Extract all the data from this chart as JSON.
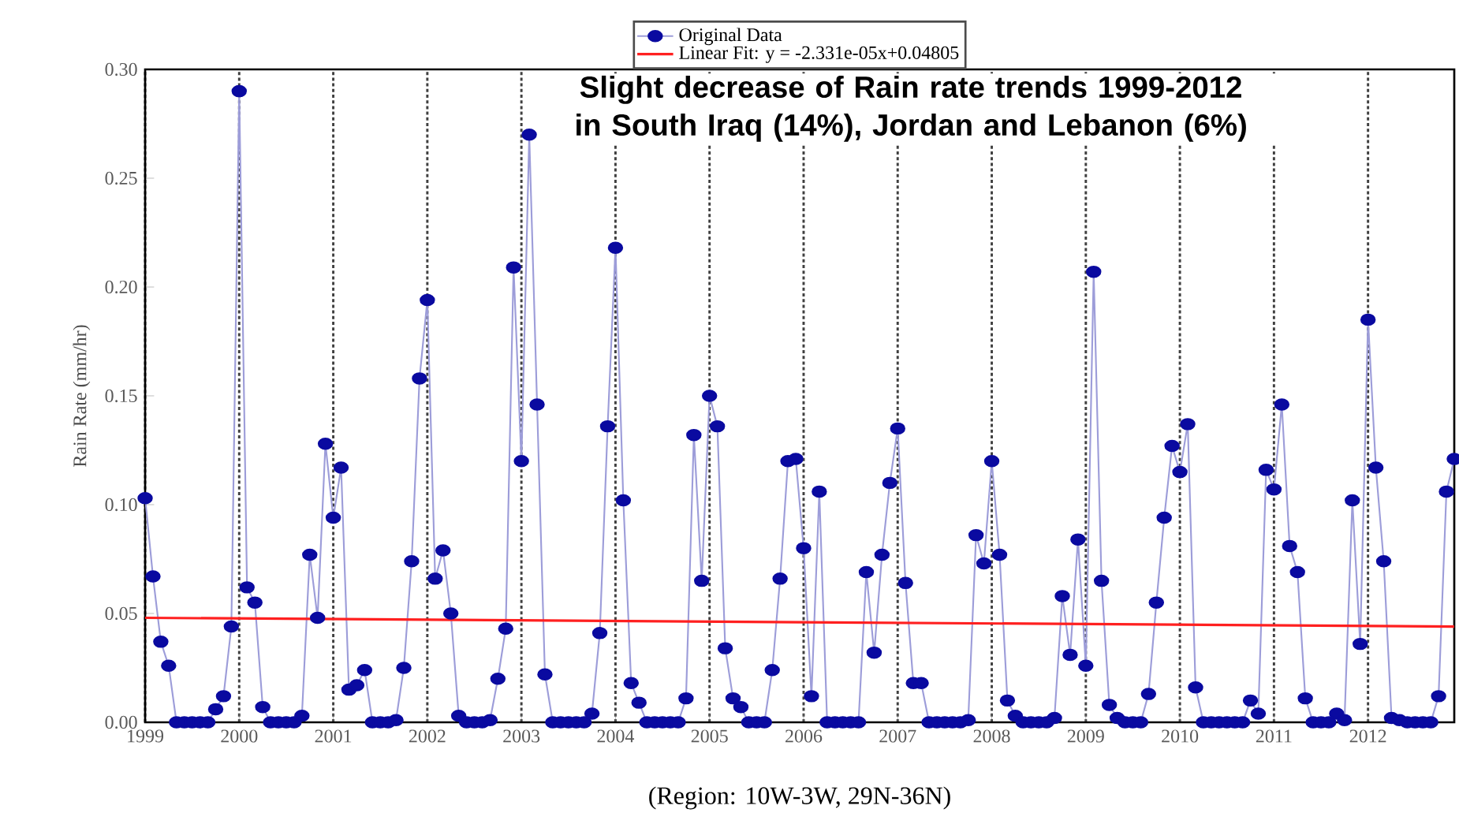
{
  "chart_data": {
    "type": "line",
    "title": "Slight decrease of Rain rate trends 1999-2012 in South Iraq (14%), Jordan and Lebanon (6%)",
    "xlabel": "(Region: 10W-3W, 29N-36N)",
    "ylabel": "Rain Rate  (mm/hr)",
    "xlim": [
      "1999-01",
      "2012-12"
    ],
    "xticks": [
      "1999",
      "2000",
      "2001",
      "2002",
      "2003",
      "2004",
      "2005",
      "2006",
      "2007",
      "2008",
      "2009",
      "2010",
      "2011",
      "2012"
    ],
    "ylim": [
      0,
      0.3
    ],
    "yticks": [
      {
        "value": 0,
        "label": "0.00"
      },
      {
        "value": 0.05,
        "label": "0.05"
      },
      {
        "value": 0.1,
        "label": "0.10"
      },
      {
        "value": 0.15,
        "label": "0.15"
      },
      {
        "value": 0.2,
        "label": "0.20"
      },
      {
        "value": 0.25,
        "label": "0.25"
      },
      {
        "value": 0.3,
        "label": "0.30"
      }
    ],
    "grid": "x",
    "legend": "top",
    "series": [
      {
        "name": "Original Data",
        "color": "#0a0aa0",
        "marker": "circle",
        "x": [
          "1999-01",
          "1999-02",
          "1999-03",
          "1999-04",
          "1999-05",
          "1999-06",
          "1999-07",
          "1999-08",
          "1999-09",
          "1999-10",
          "1999-11",
          "1999-12",
          "2000-01",
          "2000-02",
          "2000-03",
          "2000-04",
          "2000-05",
          "2000-06",
          "2000-07",
          "2000-08",
          "2000-09",
          "2000-10",
          "2000-11",
          "2000-12",
          "2001-01",
          "2001-02",
          "2001-03",
          "2001-04",
          "2001-05",
          "2001-06",
          "2001-07",
          "2001-08",
          "2001-09",
          "2001-10",
          "2001-11",
          "2001-12",
          "2002-01",
          "2002-02",
          "2002-03",
          "2002-04",
          "2002-05",
          "2002-06",
          "2002-07",
          "2002-08",
          "2002-09",
          "2002-10",
          "2002-11",
          "2002-12",
          "2003-01",
          "2003-02",
          "2003-03",
          "2003-04",
          "2003-05",
          "2003-06",
          "2003-07",
          "2003-08",
          "2003-09",
          "2003-10",
          "2003-11",
          "2003-12",
          "2004-01",
          "2004-02",
          "2004-03",
          "2004-04",
          "2004-05",
          "2004-06",
          "2004-07",
          "2004-08",
          "2004-09",
          "2004-10",
          "2004-11",
          "2004-12",
          "2005-01",
          "2005-02",
          "2005-03",
          "2005-04",
          "2005-05",
          "2005-06",
          "2005-07",
          "2005-08",
          "2005-09",
          "2005-10",
          "2005-11",
          "2005-12",
          "2006-01",
          "2006-02",
          "2006-03",
          "2006-04",
          "2006-05",
          "2006-06",
          "2006-07",
          "2006-08",
          "2006-09",
          "2006-10",
          "2006-11",
          "2006-12",
          "2007-01",
          "2007-02",
          "2007-03",
          "2007-04",
          "2007-05",
          "2007-06",
          "2007-07",
          "2007-08",
          "2007-09",
          "2007-10",
          "2007-11",
          "2007-12",
          "2008-01",
          "2008-02",
          "2008-03",
          "2008-04",
          "2008-05",
          "2008-06",
          "2008-07",
          "2008-08",
          "2008-09",
          "2008-10",
          "2008-11",
          "2008-12",
          "2009-01",
          "2009-02",
          "2009-03",
          "2009-04",
          "2009-05",
          "2009-06",
          "2009-07",
          "2009-08",
          "2009-09",
          "2009-10",
          "2009-11",
          "2009-12",
          "2010-01",
          "2010-02",
          "2010-03",
          "2010-04",
          "2010-05",
          "2010-06",
          "2010-07",
          "2010-08",
          "2010-09",
          "2010-10",
          "2010-11",
          "2010-12",
          "2011-01",
          "2011-02",
          "2011-03",
          "2011-04",
          "2011-05",
          "2011-06",
          "2011-07",
          "2011-08",
          "2011-09",
          "2011-10",
          "2011-11",
          "2011-12",
          "2012-01",
          "2012-02",
          "2012-03",
          "2012-04",
          "2012-05",
          "2012-06",
          "2012-07",
          "2012-08",
          "2012-09",
          "2012-10",
          "2012-11",
          "2012-12"
        ],
        "values": [
          0.103,
          0.067,
          0.037,
          0.026,
          0,
          0,
          0,
          0,
          0,
          0.006,
          0.012,
          0.044,
          0.29,
          0.062,
          0.055,
          0.007,
          0,
          0,
          0,
          0,
          0.003,
          0.077,
          0.048,
          0.128,
          0.094,
          0.117,
          0.015,
          0.017,
          0.024,
          0,
          0,
          0,
          0.001,
          0.025,
          0.074,
          0.158,
          0.194,
          0.066,
          0.079,
          0.05,
          0.003,
          0,
          0,
          0,
          0.001,
          0.02,
          0.043,
          0.209,
          0.12,
          0.27,
          0.146,
          0.022,
          0,
          0,
          0,
          0,
          0,
          0.004,
          0.041,
          0.136,
          0.218,
          0.102,
          0.018,
          0.009,
          0,
          0,
          0,
          0,
          0,
          0.011,
          0.132,
          0.065,
          0.15,
          0.136,
          0.034,
          0.011,
          0.007,
          0,
          0,
          0,
          0.024,
          0.066,
          0.12,
          0.121,
          0.08,
          0.012,
          0.106,
          0,
          0,
          0,
          0,
          0,
          0.069,
          0.032,
          0.077,
          0.11,
          0.135,
          0.064,
          0.018,
          0.018,
          0,
          0,
          0,
          0,
          0,
          0.001,
          0.086,
          0.073,
          0.12,
          0.077,
          0.01,
          0.003,
          0,
          0,
          0,
          0,
          0.002,
          0.058,
          0.031,
          0.084,
          0.026,
          0.207,
          0.065,
          0.008,
          0.002,
          0,
          0,
          0,
          0.013,
          0.055,
          0.094,
          0.127,
          0.115,
          0.137,
          0.016,
          0,
          0,
          0,
          0,
          0,
          0,
          0.01,
          0.004,
          0.116,
          0.107,
          0.146,
          0.081,
          0.069,
          0.011,
          0,
          0,
          0,
          0.004,
          0.001,
          0.102,
          0.036,
          0.185,
          0.117,
          0.074,
          0.002,
          0.001,
          0,
          0,
          0,
          0,
          0.012,
          0.106,
          0.121
        ]
      },
      {
        "name": "Linear Fit: y = -2.331e-05x+0.04805",
        "color": "#ff2020",
        "marker": "none",
        "x": [
          "1999-01",
          "2012-12"
        ],
        "values": [
          0.048,
          0.044
        ]
      }
    ]
  }
}
